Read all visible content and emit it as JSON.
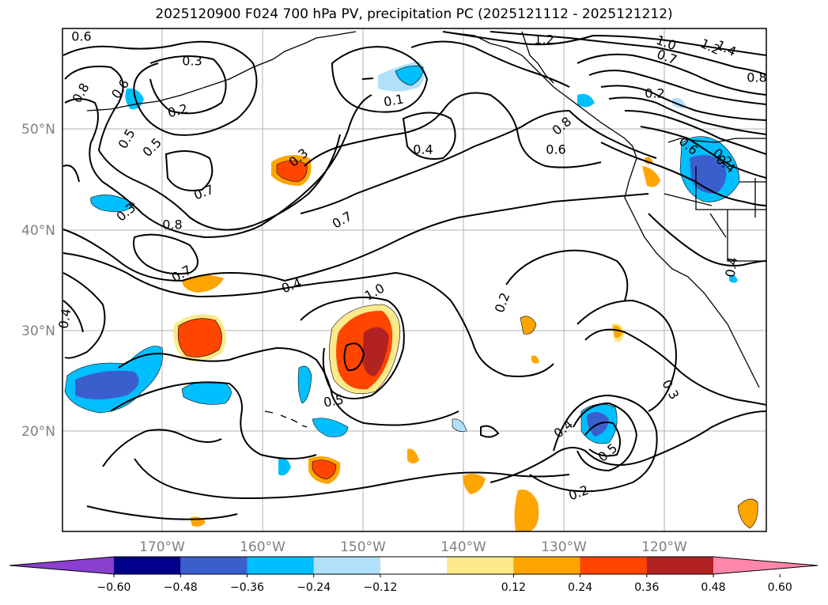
{
  "title": "2025120900 F024 700 hPa PV, precipitation PC (2025121112 - 2025121212)",
  "map": {
    "lat_labels": [
      "50°N",
      "40°N",
      "30°N",
      "20°N"
    ],
    "lon_labels": [
      "170°W",
      "160°W",
      "150°W",
      "140°W",
      "130°W",
      "120°W"
    ],
    "contour_labels": [
      "0.6",
      "1.2",
      "1.0",
      "1.4",
      "1.2",
      "0.3",
      "0.8",
      "0.7",
      "0.8",
      "0.2",
      "0.6",
      "0.2",
      "0.1",
      "0.4",
      "0.8",
      "0.6",
      "0.5",
      "0.4",
      "0.5",
      "0.3",
      "0.7",
      "0.3",
      "0.8",
      "0.7",
      "0.7",
      "0.4",
      "1.0",
      "0.4",
      "0.4",
      "0.2",
      "0.2",
      "0.5",
      "0.4",
      "0.3",
      "0.5",
      "0.6",
      "0.2"
    ]
  },
  "colorbar": {
    "colors": [
      "#8b3fcf",
      "#00008b",
      "#3a5fcd",
      "#00bfff",
      "#b0e0fa",
      "#ffffff",
      "#fce98a",
      "#ffa500",
      "#ff4500",
      "#b22222",
      "#ff88aa"
    ],
    "ticks": [
      "−0.60",
      "−0.48",
      "−0.36",
      "−0.24",
      "−0.12",
      "0.12",
      "0.24",
      "0.36",
      "0.48",
      "0.60"
    ]
  }
}
